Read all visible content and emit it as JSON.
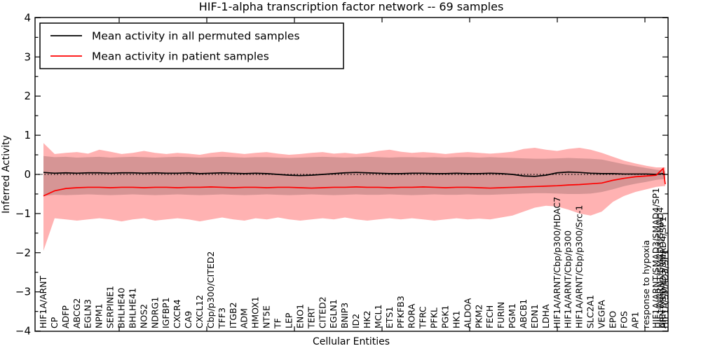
{
  "title": "HIF-1-alpha transcription factor network -- 69 samples",
  "legend": {
    "permuted_label": "Mean activity in all permuted samples",
    "patient_label": "Mean activity in patient samples",
    "permuted_color": "#000000",
    "patient_color": "#ff0000"
  },
  "axes": {
    "xlabel": "Cellular Entities",
    "ylabel": "Inferred Activity",
    "ylim": [
      -4,
      4
    ],
    "yticks": [
      -4,
      -3,
      -2,
      -1,
      0,
      1,
      2,
      3,
      4
    ],
    "zero_line_style": "dotted",
    "grid": false,
    "legend_position": "upper left"
  },
  "chart_data": {
    "type": "line",
    "title": "HIF-1-alpha transcription factor network -- 69 samples",
    "xlabel": "Cellular Entities",
    "ylabel": "Inferred Activity",
    "ylim": [
      -4,
      4
    ],
    "categories": [
      "HIF1A/ARNT",
      "CP",
      "ADFP",
      "ABCG2",
      "EGLN3",
      "NPM1",
      "SERPINE1",
      "BHLHE40",
      "BHLHE41",
      "NOS2",
      "NDRG1",
      "IGFBP1",
      "CXCR4",
      "CA9",
      "CXCL12",
      "Cbp/p300/CITED2",
      "TFF3",
      "ITGB2",
      "ADM",
      "HMOX1",
      "NT5E",
      "TF",
      "LEP",
      "ENO1",
      "TERT",
      "CITED2",
      "EGLN1",
      "BNIP3",
      "ID2",
      "HK2",
      "MCL1",
      "ETS1",
      "PFKFB3",
      "RORA",
      "TFRC",
      "PFKL",
      "PGK1",
      "HK1",
      "ALDOA",
      "PKM2",
      "FECH",
      "FURIN",
      "PGM1",
      "ABCB1",
      "EDN1",
      "LDHA",
      "HIF1A/ARNT/Cbp/p300/HDAC7",
      "HIF1A/ARNT/Cbp/p300",
      "HIF1A/ARNT/Cbp/p300/Src-1",
      "SLC2A1",
      "VEGFA",
      "EPO",
      "FOS",
      "AP1",
      "response to hypoxia"
    ],
    "overlap_cluster": {
      "note": "last tick labels overlap into an illegible blob; only one is readable",
      "readable_label": "HIF1A/ARNT/SMAD3/SMAD4/SP1",
      "illegible_labels_rendered_as": [
        "HIF1A/ARNT/SMAD3/SMAD4",
        "ARNT/SMAD3/SMAD4/SP1",
        "HIF1A/SMAD3/SP1"
      ]
    },
    "series": [
      {
        "name": "Mean activity in all permuted samples",
        "color": "#000000",
        "values": [
          0.05,
          0.03,
          0.04,
          0.03,
          0.04,
          0.04,
          0.03,
          0.04,
          0.04,
          0.03,
          0.04,
          0.03,
          0.03,
          0.04,
          0.02,
          0.03,
          0.04,
          0.03,
          0.02,
          0.03,
          0.02,
          0.0,
          -0.02,
          -0.03,
          -0.02,
          0.0,
          0.02,
          0.04,
          0.05,
          0.04,
          0.03,
          0.02,
          0.02,
          0.03,
          0.03,
          0.02,
          0.02,
          0.03,
          0.02,
          0.02,
          0.03,
          0.02,
          0.0,
          -0.04,
          -0.05,
          -0.02,
          0.04,
          0.06,
          0.05,
          0.03,
          0.02,
          0.02,
          0.01,
          0.01,
          0.01,
          0.0,
          0.02,
          0.0
        ]
      },
      {
        "name": "Mean activity in patient samples",
        "color": "#ff0000",
        "values": [
          -0.55,
          -0.42,
          -0.36,
          -0.34,
          -0.33,
          -0.33,
          -0.34,
          -0.33,
          -0.33,
          -0.34,
          -0.33,
          -0.33,
          -0.34,
          -0.33,
          -0.33,
          -0.32,
          -0.33,
          -0.34,
          -0.33,
          -0.33,
          -0.34,
          -0.33,
          -0.33,
          -0.34,
          -0.35,
          -0.34,
          -0.33,
          -0.33,
          -0.32,
          -0.33,
          -0.33,
          -0.34,
          -0.33,
          -0.33,
          -0.32,
          -0.33,
          -0.34,
          -0.33,
          -0.33,
          -0.34,
          -0.35,
          -0.34,
          -0.33,
          -0.32,
          -0.31,
          -0.3,
          -0.29,
          -0.27,
          -0.26,
          -0.24,
          -0.22,
          -0.15,
          -0.1,
          -0.06,
          -0.04,
          -0.02,
          0.15,
          -0.25
        ]
      }
    ],
    "bands": [
      {
        "name": "patient band (±1 sd)",
        "fill": "rgba(255,0,0,0.30)",
        "upper": [
          0.8,
          0.52,
          0.55,
          0.57,
          0.53,
          0.63,
          0.58,
          0.52,
          0.55,
          0.6,
          0.55,
          0.52,
          0.55,
          0.53,
          0.5,
          0.55,
          0.58,
          0.55,
          0.52,
          0.55,
          0.57,
          0.53,
          0.5,
          0.52,
          0.55,
          0.57,
          0.53,
          0.55,
          0.52,
          0.55,
          0.6,
          0.63,
          0.58,
          0.55,
          0.57,
          0.55,
          0.52,
          0.55,
          0.57,
          0.55,
          0.53,
          0.55,
          0.58,
          0.65,
          0.68,
          0.63,
          0.6,
          0.65,
          0.68,
          0.63,
          0.55,
          0.45,
          0.35,
          0.28,
          0.22,
          0.18,
          0.18,
          0.18
        ],
        "lower": [
          -1.95,
          -1.12,
          -1.15,
          -1.18,
          -1.15,
          -1.12,
          -1.15,
          -1.2,
          -1.15,
          -1.12,
          -1.18,
          -1.15,
          -1.12,
          -1.15,
          -1.2,
          -1.15,
          -1.1,
          -1.15,
          -1.18,
          -1.12,
          -1.15,
          -1.1,
          -1.15,
          -1.18,
          -1.15,
          -1.12,
          -1.15,
          -1.1,
          -1.15,
          -1.18,
          -1.15,
          -1.12,
          -1.15,
          -1.12,
          -1.15,
          -1.18,
          -1.15,
          -1.12,
          -1.15,
          -1.13,
          -1.15,
          -1.1,
          -1.05,
          -0.95,
          -0.85,
          -0.8,
          -0.82,
          -0.9,
          -1.0,
          -1.05,
          -0.95,
          -0.7,
          -0.55,
          -0.45,
          -0.38,
          -0.32,
          -0.3,
          -0.3
        ]
      },
      {
        "name": "permuted band (±1 sd)",
        "fill": "rgba(0,0,0,0.16)",
        "upper": [
          0.47,
          0.44,
          0.45,
          0.43,
          0.44,
          0.45,
          0.43,
          0.44,
          0.45,
          0.44,
          0.43,
          0.44,
          0.45,
          0.44,
          0.43,
          0.44,
          0.45,
          0.44,
          0.43,
          0.44,
          0.44,
          0.43,
          0.42,
          0.43,
          0.44,
          0.45,
          0.44,
          0.43,
          0.44,
          0.45,
          0.44,
          0.43,
          0.44,
          0.44,
          0.43,
          0.44,
          0.43,
          0.44,
          0.44,
          0.43,
          0.44,
          0.43,
          0.42,
          0.41,
          0.4,
          0.4,
          0.41,
          0.42,
          0.41,
          0.4,
          0.38,
          0.32,
          0.26,
          0.21,
          0.16,
          0.12,
          0.1,
          0.08
        ],
        "lower": [
          -0.55,
          -0.52,
          -0.53,
          -0.52,
          -0.51,
          -0.52,
          -0.53,
          -0.52,
          -0.51,
          -0.52,
          -0.53,
          -0.52,
          -0.51,
          -0.52,
          -0.53,
          -0.52,
          -0.51,
          -0.52,
          -0.53,
          -0.52,
          -0.51,
          -0.52,
          -0.53,
          -0.52,
          -0.51,
          -0.52,
          -0.53,
          -0.52,
          -0.51,
          -0.52,
          -0.52,
          -0.51,
          -0.52,
          -0.53,
          -0.52,
          -0.51,
          -0.52,
          -0.52,
          -0.51,
          -0.52,
          -0.52,
          -0.51,
          -0.5,
          -0.49,
          -0.48,
          -0.48,
          -0.49,
          -0.5,
          -0.5,
          -0.49,
          -0.45,
          -0.38,
          -0.3,
          -0.24,
          -0.19,
          -0.14,
          -0.12,
          -0.1
        ]
      }
    ]
  }
}
